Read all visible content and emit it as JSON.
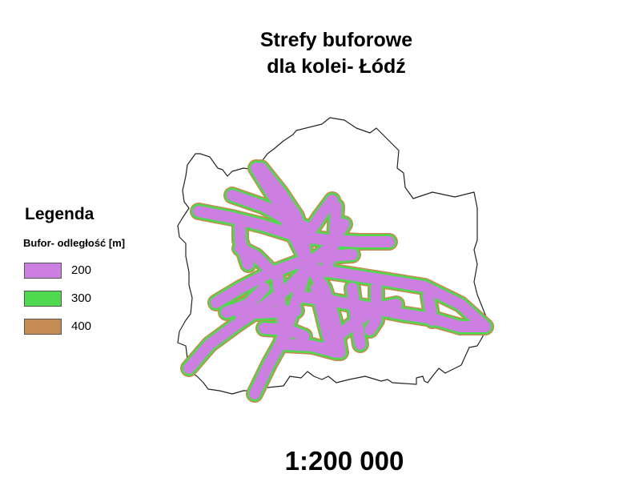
{
  "map": {
    "title_line1": "Strefy buforowe",
    "title_line2": "dla kolei- Łódź",
    "scale": "1:200 000"
  },
  "legend": {
    "title": "Legenda",
    "subtitle": "Bufor- odległość [m]",
    "items": [
      {
        "label": "200",
        "color": "#cc7fe0"
      },
      {
        "label": "300",
        "color": "#4ed94e"
      },
      {
        "label": "400",
        "color": "#c48c52"
      }
    ]
  }
}
